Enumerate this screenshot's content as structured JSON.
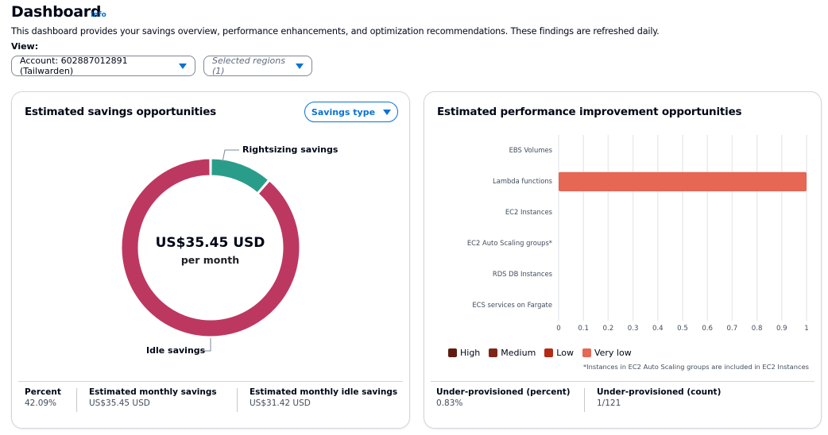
{
  "header": {
    "title": "Dashboard",
    "info_link": "Info",
    "description": "This dashboard provides your savings overview, performance enhancements, and optimization recommendations. These findings are refreshed daily.",
    "view_label": "View:",
    "account_select": "Account: 602887012891 (Tailwarden)",
    "regions_select": "Selected regions (1)"
  },
  "savings_card": {
    "title": "Estimated savings opportunities",
    "savings_type_button": "Savings type",
    "center_value": "US$35.45 USD",
    "center_sub": "per month",
    "stats": [
      {
        "label": "Percent",
        "value": "42.09%"
      },
      {
        "label": "Estimated monthly savings",
        "value": "US$35.45 USD"
      },
      {
        "label": "Estimated monthly idle savings",
        "value": "US$31.42 USD"
      }
    ]
  },
  "performance_card": {
    "title": "Estimated performance improvement opportunities",
    "footnote": "*Instances in EC2 Auto Scaling groups are included in EC2 Instances",
    "stats": [
      {
        "label": "Under-provisioned (percent)",
        "value": "0.83%"
      },
      {
        "label": "Under-provisioned (count)",
        "value": "1/121"
      }
    ]
  },
  "chart_data": [
    {
      "type": "pie",
      "title": "Estimated savings opportunities",
      "categories": [
        "Rightsizing savings",
        "Idle savings"
      ],
      "values": [
        4.03,
        31.42
      ],
      "colors": [
        "#2a9d8a",
        "#bd3860"
      ],
      "center_text": "US$35.45 USD per month"
    },
    {
      "type": "bar",
      "orientation": "horizontal",
      "stacked": true,
      "title": "Estimated performance improvement opportunities",
      "categories": [
        "EBS Volumes",
        "Lambda functions",
        "EC2 Instances",
        "EC2 Auto Scaling groups*",
        "RDS DB Instances",
        "ECS services on Fargate"
      ],
      "series": [
        {
          "name": "High",
          "color": "#5e1c10",
          "values": [
            0,
            0,
            0,
            0,
            0,
            0
          ]
        },
        {
          "name": "Medium",
          "color": "#7f2518",
          "values": [
            0,
            0,
            0,
            0,
            0,
            0
          ]
        },
        {
          "name": "Low",
          "color": "#b42a17",
          "values": [
            0,
            0,
            0,
            0,
            0,
            0
          ]
        },
        {
          "name": "Very low",
          "color": "#e56754",
          "values": [
            0,
            1,
            0,
            0,
            0,
            0
          ]
        }
      ],
      "xlim": [
        0,
        1
      ],
      "xticks": [
        "0",
        "0.1",
        "0.2",
        "0.3",
        "0.4",
        "0.5",
        "0.6",
        "0.7",
        "0.8",
        "0.9",
        "1"
      ],
      "grid": true,
      "legend_position": "bottom-left"
    }
  ]
}
